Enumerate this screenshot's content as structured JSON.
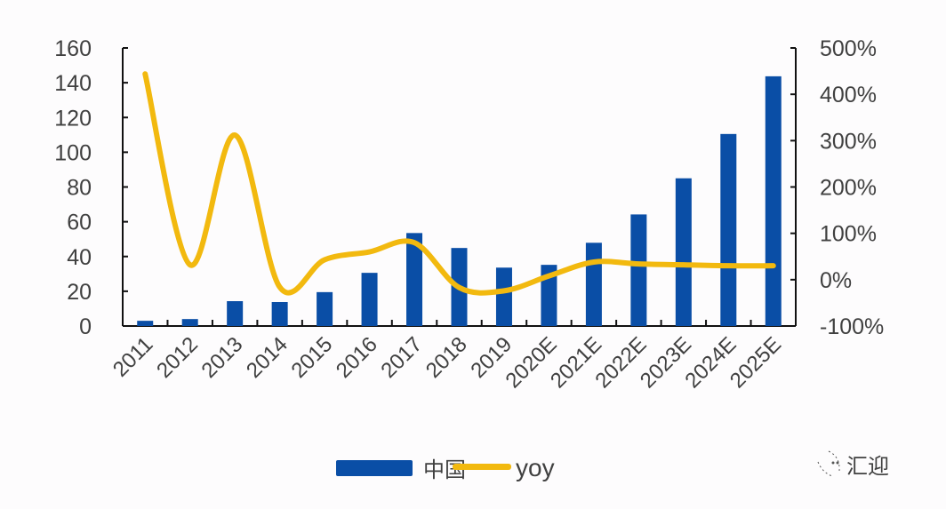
{
  "chart_data": {
    "type": "bar+line",
    "categories": [
      "2011",
      "2012",
      "2013",
      "2014",
      "2015",
      "2016",
      "2017",
      "2018",
      "2019",
      "2020E",
      "2021E",
      "2022E",
      "2023E",
      "2024E",
      "2025E"
    ],
    "series": [
      {
        "name": "中国",
        "type": "bar",
        "axis": "left",
        "color": "#0a4ea6",
        "values": [
          3,
          4,
          14.3,
          13.8,
          19.5,
          30.6,
          53.5,
          44.9,
          33.6,
          35.2,
          47.9,
          64.2,
          85,
          110.5,
          143.7
        ]
      },
      {
        "name": "yoy",
        "type": "line",
        "axis": "right",
        "color": "#f2b90f",
        "smooth": true,
        "values": [
          444,
          32,
          312,
          -16,
          43,
          60,
          80,
          -17,
          -24,
          8,
          38,
          34,
          32,
          30,
          30
        ]
      }
    ],
    "left_axis": {
      "ylim": [
        0,
        160
      ],
      "ticks": [
        "0",
        "20",
        "40",
        "60",
        "80",
        "100",
        "120",
        "140",
        "160"
      ]
    },
    "right_axis": {
      "ylim": [
        -100,
        500
      ],
      "unit": "%",
      "ticks": [
        "-100%",
        "0%",
        "100%",
        "200%",
        "300%",
        "400%",
        "500%"
      ]
    },
    "grid": false,
    "legend": {
      "placement": "bottom",
      "entries": [
        "中国",
        "yoy"
      ]
    }
  },
  "watermark": "汇迎"
}
